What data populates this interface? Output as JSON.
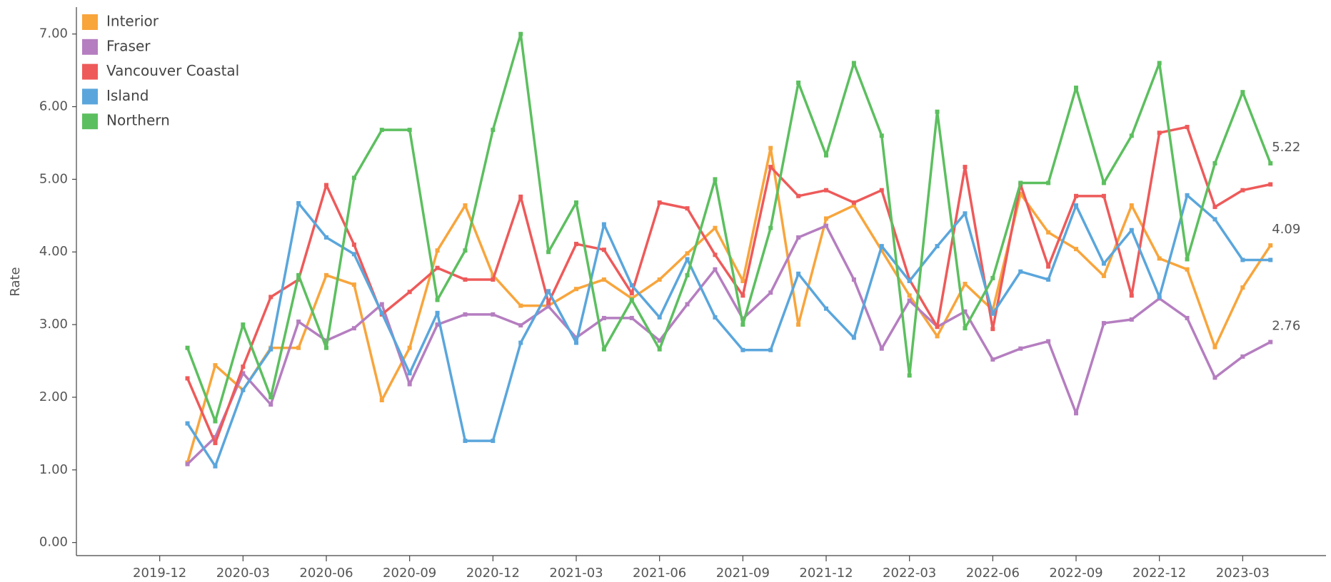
{
  "chart_data": {
    "type": "line",
    "y_label": "Rate",
    "x": [
      "2020-01",
      "2020-02",
      "2020-03",
      "2020-04",
      "2020-05",
      "2020-06",
      "2020-07",
      "2020-08",
      "2020-09",
      "2020-10",
      "2020-11",
      "2020-12",
      "2021-01",
      "2021-02",
      "2021-03",
      "2021-04",
      "2021-05",
      "2021-06",
      "2021-07",
      "2021-08",
      "2021-09",
      "2021-10",
      "2021-11",
      "2021-12",
      "2022-01",
      "2022-02",
      "2022-03",
      "2022-04",
      "2022-05",
      "2022-06",
      "2022-07",
      "2022-08",
      "2022-09",
      "2022-10",
      "2022-11",
      "2022-12",
      "2023-01",
      "2023-02",
      "2023-03",
      "2023-04"
    ],
    "xlim": [
      "2019-09",
      "2023-06"
    ],
    "xticks": [
      "2019-12",
      "2020-03",
      "2020-06",
      "2020-09",
      "2020-12",
      "2021-03",
      "2021-06",
      "2021-09",
      "2021-12",
      "2022-03",
      "2022-06",
      "2022-09",
      "2022-12",
      "2023-03"
    ],
    "ylim": [
      -0.18,
      7.37
    ],
    "yticks": [
      {
        "value": 0,
        "label": "0.00"
      },
      {
        "value": 1,
        "label": "1.00"
      },
      {
        "value": 2,
        "label": "2.00"
      },
      {
        "value": 3,
        "label": "3.00"
      },
      {
        "value": 4,
        "label": "4.00"
      },
      {
        "value": 5,
        "label": "5.00"
      },
      {
        "value": 6,
        "label": "6.00"
      },
      {
        "value": 7,
        "label": "7.00"
      }
    ],
    "legend": "top-left",
    "series": [
      {
        "name": "Interior",
        "color": "#f8a53c",
        "end_label": true,
        "values": [
          1.1,
          2.44,
          2.1,
          2.68,
          2.68,
          3.68,
          3.55,
          1.96,
          2.68,
          4.02,
          4.64,
          3.68,
          3.26,
          3.26,
          3.49,
          3.62,
          3.36,
          3.62,
          3.98,
          4.33,
          3.6,
          5.43,
          3.0,
          4.46,
          4.64,
          4.02,
          3.4,
          2.84,
          3.56,
          3.2,
          4.8,
          4.27,
          4.04,
          3.67,
          4.64,
          3.91,
          3.76,
          2.69,
          3.51,
          4.09
        ]
      },
      {
        "name": "Fraser",
        "color": "#b57ec0",
        "end_label": true,
        "values": [
          1.08,
          1.45,
          2.33,
          1.9,
          3.04,
          2.78,
          2.95,
          3.28,
          2.18,
          3.0,
          3.14,
          3.14,
          2.99,
          3.25,
          2.82,
          3.09,
          3.09,
          2.78,
          3.28,
          3.76,
          3.08,
          3.44,
          4.2,
          4.36,
          3.62,
          2.67,
          3.33,
          2.97,
          3.18,
          2.52,
          2.67,
          2.77,
          1.78,
          3.02,
          3.07,
          3.36,
          3.09,
          2.27,
          2.56,
          2.76
        ]
      },
      {
        "name": "Vancouver Coastal",
        "color": "#ee5a5a",
        "end_label": false,
        "values": [
          2.26,
          1.37,
          2.42,
          3.38,
          3.62,
          4.92,
          4.1,
          3.14,
          3.45,
          3.78,
          3.62,
          3.62,
          4.76,
          3.3,
          4.11,
          4.03,
          3.43,
          4.68,
          4.6,
          3.96,
          3.4,
          5.17,
          4.77,
          4.85,
          4.68,
          4.85,
          3.62,
          2.97,
          5.17,
          2.94,
          4.93,
          3.8,
          4.77,
          4.77,
          3.4,
          5.64,
          5.72,
          4.62,
          4.85,
          4.93
        ]
      },
      {
        "name": "Island",
        "color": "#5aa6dc",
        "end_label": false,
        "values": [
          1.64,
          1.05,
          2.1,
          2.66,
          4.67,
          4.2,
          3.97,
          3.16,
          2.33,
          3.16,
          1.4,
          1.4,
          2.75,
          3.46,
          2.75,
          4.38,
          3.54,
          3.1,
          3.9,
          3.1,
          2.65,
          2.65,
          3.7,
          3.22,
          2.82,
          4.08,
          3.6,
          4.08,
          4.53,
          3.15,
          3.73,
          3.62,
          4.64,
          3.84,
          4.3,
          3.38,
          4.78,
          4.45,
          3.89,
          3.89
        ]
      },
      {
        "name": "Northern",
        "color": "#5cbf5f",
        "end_label": true,
        "values": [
          2.68,
          1.67,
          3.0,
          2.0,
          3.68,
          2.68,
          5.02,
          5.68,
          5.68,
          3.34,
          4.02,
          5.68,
          7.0,
          4.0,
          4.68,
          2.66,
          3.34,
          2.66,
          3.68,
          5.0,
          3.0,
          4.33,
          6.33,
          5.33,
          6.6,
          5.6,
          2.3,
          5.93,
          2.95,
          3.64,
          4.95,
          4.95,
          6.26,
          4.95,
          5.6,
          6.6,
          3.9,
          5.22,
          6.2,
          5.22
        ]
      }
    ]
  }
}
